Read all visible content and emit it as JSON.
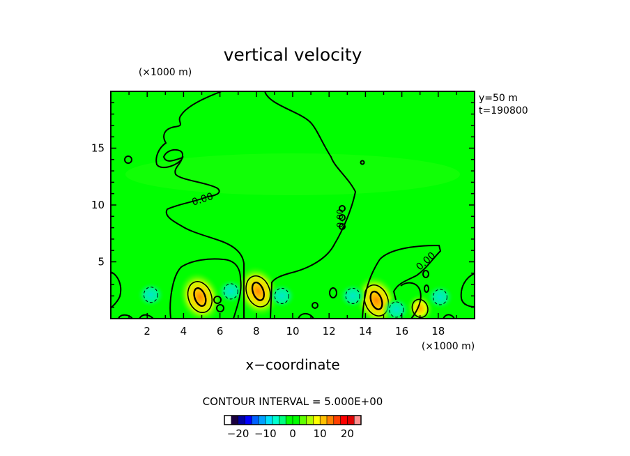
{
  "chart_data": {
    "type": "heatmap",
    "title": "vertical velocity",
    "xlabel": "x−coordinate",
    "x_unit": "(×1000 m)",
    "y_unit": "(×1000 m)",
    "xlim": [
      0,
      20
    ],
    "ylim": [
      0,
      20
    ],
    "x_ticks": [
      2,
      4,
      6,
      8,
      10,
      12,
      14,
      16,
      18
    ],
    "y_ticks": [
      5,
      10,
      15
    ],
    "annotations": [
      "y=50  m",
      "t=190800"
    ],
    "contour_label": "0.00",
    "contour_interval_text": "CONTOUR INTERVAL = 5.000E+00",
    "colorbar": {
      "range": [
        -25,
        25
      ],
      "ticks": [
        -20,
        -10,
        0,
        10,
        20
      ],
      "colors": [
        "#ffffff",
        "#1a0040",
        "#0000a0",
        "#0000ff",
        "#0060ff",
        "#00a0ff",
        "#00e0ff",
        "#00ffd0",
        "#00ff80",
        "#00ff00",
        "#00ff00",
        "#60ff00",
        "#b0ff00",
        "#ffff00",
        "#ffc000",
        "#ff8000",
        "#ff4000",
        "#ff0000",
        "#e00000",
        "#ff9090"
      ]
    },
    "field_background_value": 0,
    "features": [
      {
        "kind": "updraft",
        "x": 4.9,
        "y": 1.9,
        "peak": 15
      },
      {
        "kind": "updraft",
        "x": 8.1,
        "y": 2.4,
        "peak": 15
      },
      {
        "kind": "updraft",
        "x": 14.6,
        "y": 1.6,
        "peak": 15
      },
      {
        "kind": "updraft",
        "x": 17.0,
        "y": 0.9,
        "peak": 10
      },
      {
        "kind": "downdraft",
        "x": 2.2,
        "y": 2.1,
        "peak": -5
      },
      {
        "kind": "downdraft",
        "x": 6.6,
        "y": 2.4,
        "peak": -5
      },
      {
        "kind": "downdraft",
        "x": 9.4,
        "y": 2.0,
        "peak": -5
      },
      {
        "kind": "downdraft",
        "x": 13.3,
        "y": 2.0,
        "peak": -5
      },
      {
        "kind": "downdraft",
        "x": 15.7,
        "y": 0.8,
        "peak": -5
      },
      {
        "kind": "downdraft",
        "x": 18.1,
        "y": 1.9,
        "peak": -5
      }
    ]
  }
}
